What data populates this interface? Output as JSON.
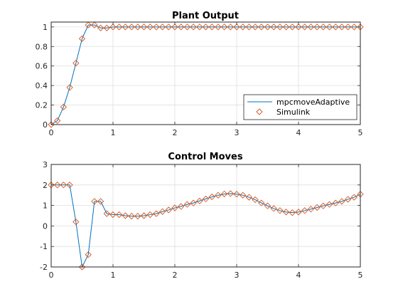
{
  "colors": {
    "line": "#0072BD",
    "marker": "#D95319",
    "grid": "#dfdfdf",
    "axis": "#262626"
  },
  "chart_data": [
    {
      "type": "line",
      "title": "Plant Output",
      "xlim": [
        0,
        5
      ],
      "ylim": [
        0,
        1.05
      ],
      "xticks": [
        0,
        1,
        2,
        3,
        4,
        5
      ],
      "yticks": [
        0,
        0.2,
        0.4,
        0.6,
        0.8,
        1
      ],
      "xtick_labels": [
        "0",
        "1",
        "2",
        "3",
        "4",
        "5"
      ],
      "ytick_labels": [
        "0",
        "0.2",
        "0.4",
        "0.6",
        "0.8",
        "1"
      ],
      "grid": true,
      "legend": {
        "position": "bottom-right",
        "entries": [
          {
            "label": "mpcmoveAdaptive",
            "style": "line"
          },
          {
            "label": "Simulink",
            "style": "marker"
          }
        ]
      },
      "x": [
        0,
        0.1,
        0.2,
        0.3,
        0.4,
        0.5,
        0.6,
        0.7,
        0.8,
        0.9,
        1.0,
        1.1,
        1.2,
        1.3,
        1.4,
        1.5,
        1.6,
        1.7,
        1.8,
        1.9,
        2.0,
        2.1,
        2.2,
        2.3,
        2.4,
        2.5,
        2.6,
        2.7,
        2.8,
        2.9,
        3.0,
        3.1,
        3.2,
        3.3,
        3.4,
        3.5,
        3.6,
        3.7,
        3.8,
        3.9,
        4.0,
        4.1,
        4.2,
        4.3,
        4.4,
        4.5,
        4.6,
        4.7,
        4.8,
        4.9,
        5.0
      ],
      "series": [
        {
          "name": "mpcmoveAdaptive",
          "values": [
            0,
            0.04,
            0.18,
            0.38,
            0.63,
            0.88,
            1.02,
            1.02,
            0.99,
            0.99,
            1.0,
            1.0,
            1.0,
            1.0,
            1.0,
            1.0,
            1.0,
            1.0,
            1.0,
            1.0,
            1.0,
            1.0,
            1.0,
            1.0,
            1.0,
            1.0,
            1.0,
            1.0,
            1.0,
            1.0,
            1.0,
            1.0,
            1.0,
            1.0,
            1.0,
            1.0,
            1.0,
            1.0,
            1.0,
            1.0,
            1.0,
            1.0,
            1.0,
            1.0,
            1.0,
            1.0,
            1.0,
            1.0,
            1.0,
            1.0,
            1.0
          ]
        },
        {
          "name": "Simulink",
          "values": [
            0,
            0.04,
            0.18,
            0.38,
            0.63,
            0.88,
            1.02,
            1.02,
            0.99,
            0.99,
            1.0,
            1.0,
            1.0,
            1.0,
            1.0,
            1.0,
            1.0,
            1.0,
            1.0,
            1.0,
            1.0,
            1.0,
            1.0,
            1.0,
            1.0,
            1.0,
            1.0,
            1.0,
            1.0,
            1.0,
            1.0,
            1.0,
            1.0,
            1.0,
            1.0,
            1.0,
            1.0,
            1.0,
            1.0,
            1.0,
            1.0,
            1.0,
            1.0,
            1.0,
            1.0,
            1.0,
            1.0,
            1.0,
            1.0,
            1.0,
            1.0
          ]
        }
      ]
    },
    {
      "type": "line",
      "title": "Control Moves",
      "xlim": [
        0,
        5
      ],
      "ylim": [
        -2,
        3
      ],
      "xticks": [
        0,
        1,
        2,
        3,
        4,
        5
      ],
      "yticks": [
        -2,
        -1,
        0,
        1,
        2,
        3
      ],
      "xtick_labels": [
        "0",
        "1",
        "2",
        "3",
        "4",
        "5"
      ],
      "ytick_labels": [
        "-2",
        "-1",
        "0",
        "1",
        "2",
        "3"
      ],
      "grid": true,
      "x": [
        0,
        0.1,
        0.2,
        0.3,
        0.4,
        0.5,
        0.6,
        0.7,
        0.8,
        0.9,
        1.0,
        1.1,
        1.2,
        1.3,
        1.4,
        1.5,
        1.6,
        1.7,
        1.8,
        1.9,
        2.0,
        2.1,
        2.2,
        2.3,
        2.4,
        2.5,
        2.6,
        2.7,
        2.8,
        2.9,
        3.0,
        3.1,
        3.2,
        3.3,
        3.4,
        3.5,
        3.6,
        3.7,
        3.8,
        3.9,
        4.0,
        4.1,
        4.2,
        4.3,
        4.4,
        4.5,
        4.6,
        4.7,
        4.8,
        4.9,
        5.0
      ],
      "series": [
        {
          "values": [
            2,
            2,
            2,
            2,
            0.2,
            -2,
            -1.4,
            1.2,
            1.2,
            0.6,
            0.55,
            0.55,
            0.5,
            0.48,
            0.48,
            0.5,
            0.55,
            0.6,
            0.7,
            0.78,
            0.88,
            0.95,
            1.05,
            1.12,
            1.22,
            1.32,
            1.42,
            1.5,
            1.56,
            1.58,
            1.55,
            1.5,
            1.4,
            1.28,
            1.12,
            0.98,
            0.85,
            0.75,
            0.68,
            0.65,
            0.68,
            0.75,
            0.82,
            0.9,
            0.98,
            1.05,
            1.12,
            1.2,
            1.3,
            1.4,
            1.55
          ]
        },
        {
          "values": [
            2,
            2,
            2,
            2,
            0.2,
            -2,
            -1.4,
            1.2,
            1.2,
            0.6,
            0.55,
            0.55,
            0.5,
            0.48,
            0.48,
            0.5,
            0.55,
            0.6,
            0.7,
            0.78,
            0.88,
            0.95,
            1.05,
            1.12,
            1.22,
            1.32,
            1.42,
            1.5,
            1.56,
            1.58,
            1.55,
            1.5,
            1.4,
            1.28,
            1.12,
            0.98,
            0.85,
            0.75,
            0.68,
            0.65,
            0.68,
            0.75,
            0.82,
            0.9,
            0.98,
            1.05,
            1.12,
            1.2,
            1.3,
            1.4,
            1.55
          ]
        }
      ]
    }
  ]
}
